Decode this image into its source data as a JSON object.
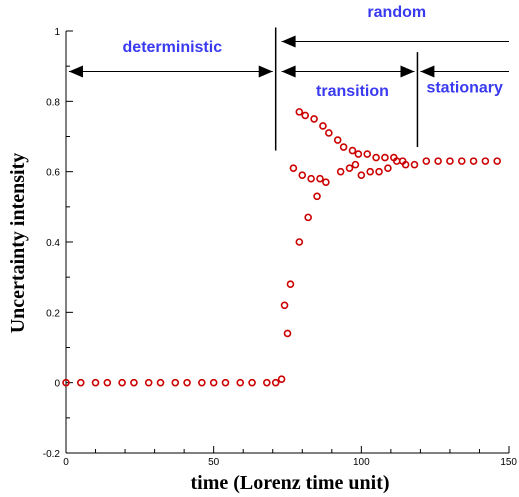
{
  "chart_data": {
    "type": "scatter",
    "xlabel": "time (Lorenz time unit)",
    "ylabel": "Uncertainty intensity",
    "xlim": [
      0,
      150
    ],
    "ylim": [
      -0.2,
      1
    ],
    "x_ticks": [
      0,
      50,
      100,
      150
    ],
    "y_ticks": [
      -0.2,
      0,
      0.2,
      0.4,
      0.6,
      0.8,
      1
    ],
    "x_tick_labels": [
      "0",
      "50",
      "100",
      "150"
    ],
    "y_tick_labels": [
      "-0.2",
      "0",
      "0.2",
      "0.4",
      "0.6",
      "0.8",
      "1"
    ],
    "grid": false,
    "marker": "open-circle",
    "marker_color": "#cc0000",
    "phase_color": "#3a3af0",
    "points": [
      {
        "x": 0,
        "y": 0
      },
      {
        "x": 5,
        "y": 0
      },
      {
        "x": 10,
        "y": 0
      },
      {
        "x": 14,
        "y": 0
      },
      {
        "x": 19,
        "y": 0
      },
      {
        "x": 23,
        "y": 0
      },
      {
        "x": 28,
        "y": 0
      },
      {
        "x": 32,
        "y": 0
      },
      {
        "x": 37,
        "y": 0
      },
      {
        "x": 41,
        "y": 0
      },
      {
        "x": 46,
        "y": 0
      },
      {
        "x": 50,
        "y": 0
      },
      {
        "x": 54,
        "y": 0
      },
      {
        "x": 59,
        "y": 0
      },
      {
        "x": 63,
        "y": 0
      },
      {
        "x": 68,
        "y": 0
      },
      {
        "x": 71,
        "y": 0
      },
      {
        "x": 73,
        "y": 0.01
      },
      {
        "x": 74,
        "y": 0.22
      },
      {
        "x": 75,
        "y": 0.14
      },
      {
        "x": 76,
        "y": 0.28
      },
      {
        "x": 77,
        "y": 0.61
      },
      {
        "x": 79,
        "y": 0.4
      },
      {
        "x": 79,
        "y": 0.77
      },
      {
        "x": 80,
        "y": 0.59
      },
      {
        "x": 81,
        "y": 0.76
      },
      {
        "x": 82,
        "y": 0.47
      },
      {
        "x": 83,
        "y": 0.58
      },
      {
        "x": 84,
        "y": 0.75
      },
      {
        "x": 85,
        "y": 0.53
      },
      {
        "x": 86,
        "y": 0.58
      },
      {
        "x": 87,
        "y": 0.73
      },
      {
        "x": 88,
        "y": 0.57
      },
      {
        "x": 89,
        "y": 0.71
      },
      {
        "x": 92,
        "y": 0.69
      },
      {
        "x": 93,
        "y": 0.6
      },
      {
        "x": 94,
        "y": 0.67
      },
      {
        "x": 96,
        "y": 0.61
      },
      {
        "x": 97,
        "y": 0.66
      },
      {
        "x": 98,
        "y": 0.62
      },
      {
        "x": 99,
        "y": 0.65
      },
      {
        "x": 100,
        "y": 0.59
      },
      {
        "x": 102,
        "y": 0.65
      },
      {
        "x": 103,
        "y": 0.6
      },
      {
        "x": 105,
        "y": 0.64
      },
      {
        "x": 106,
        "y": 0.6
      },
      {
        "x": 108,
        "y": 0.64
      },
      {
        "x": 109,
        "y": 0.61
      },
      {
        "x": 111,
        "y": 0.64
      },
      {
        "x": 112,
        "y": 0.63
      },
      {
        "x": 114,
        "y": 0.63
      },
      {
        "x": 115,
        "y": 0.62
      },
      {
        "x": 118,
        "y": 0.62
      },
      {
        "x": 122,
        "y": 0.63
      },
      {
        "x": 126,
        "y": 0.63
      },
      {
        "x": 130,
        "y": 0.63
      },
      {
        "x": 134,
        "y": 0.63
      },
      {
        "x": 138,
        "y": 0.63
      },
      {
        "x": 142,
        "y": 0.63
      },
      {
        "x": 146,
        "y": 0.63
      }
    ],
    "annotations": {
      "vlines": [
        {
          "x": 71,
          "y0": 0.66,
          "y1": 1.01
        },
        {
          "x": 119,
          "y0": 0.67,
          "y1": 0.94
        }
      ],
      "arrows": [
        {
          "x1": 1,
          "x2": 70,
          "y": 0.885,
          "heads": "both"
        },
        {
          "x1": 73,
          "x2": 150,
          "y": 0.97,
          "heads": "start"
        },
        {
          "x1": 73,
          "x2": 118,
          "y": 0.885,
          "heads": "both"
        },
        {
          "x1": 120,
          "x2": 150,
          "y": 0.885,
          "heads": "start"
        }
      ],
      "labels": [
        {
          "text": "deterministic",
          "x": 36,
          "y": 0.94
        },
        {
          "text": "random",
          "x": 112,
          "y": 1.04
        },
        {
          "text": "transition",
          "x": 97,
          "y": 0.815
        },
        {
          "text": "stationary",
          "x": 135,
          "y": 0.825
        }
      ]
    }
  }
}
